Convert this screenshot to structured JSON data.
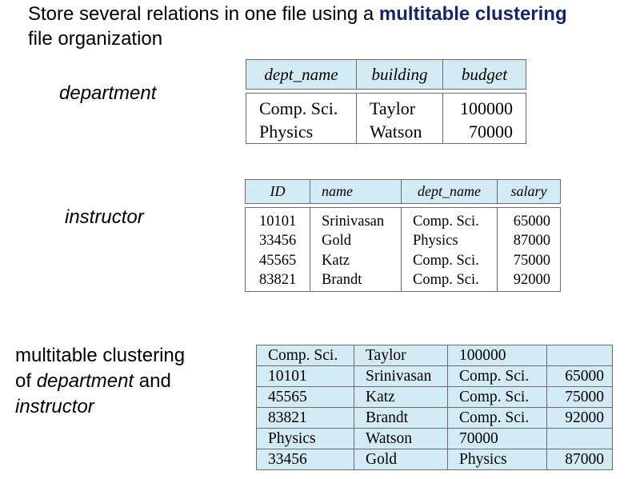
{
  "heading": {
    "prefix": "Store several relations in one file using a ",
    "highlight": "multitable clustering",
    "suffix": "file organization"
  },
  "labels": {
    "department": "department",
    "instructor": "instructor",
    "clustering_line1": "multitable clustering",
    "clustering_of": "of ",
    "clustering_department": "department",
    "clustering_and": " and",
    "clustering_instructor": "instructor"
  },
  "department": {
    "columns": [
      "dept_name",
      "building",
      "budget"
    ],
    "rows": [
      [
        "Comp. Sci.",
        "Taylor",
        "100000"
      ],
      [
        "Physics",
        "Watson",
        "70000"
      ]
    ]
  },
  "instructor": {
    "columns": [
      "ID",
      "name",
      "dept_name",
      "salary"
    ],
    "rows": [
      [
        "10101",
        "Srinivasan",
        "Comp. Sci.",
        "65000"
      ],
      [
        "33456",
        "Gold",
        "Physics",
        "87000"
      ],
      [
        "45565",
        "Katz",
        "Comp. Sci.",
        "75000"
      ],
      [
        "83821",
        "Brandt",
        "Comp. Sci.",
        "92000"
      ]
    ]
  },
  "clustering": {
    "rows": [
      [
        "Comp. Sci.",
        "Taylor",
        "100000",
        ""
      ],
      [
        "10101",
        "Srinivasan",
        "Comp. Sci.",
        "65000"
      ],
      [
        "45565",
        "Katz",
        "Comp. Sci.",
        "75000"
      ],
      [
        "83821",
        "Brandt",
        "Comp. Sci.",
        "92000"
      ],
      [
        "Physics",
        "Watson",
        "70000",
        ""
      ],
      [
        "33456",
        "Gold",
        "Physics",
        "87000"
      ]
    ]
  },
  "colors": {
    "header_fill": "#d3ebf5",
    "highlight_text": "#13256b",
    "border": "#6b6b6b"
  }
}
